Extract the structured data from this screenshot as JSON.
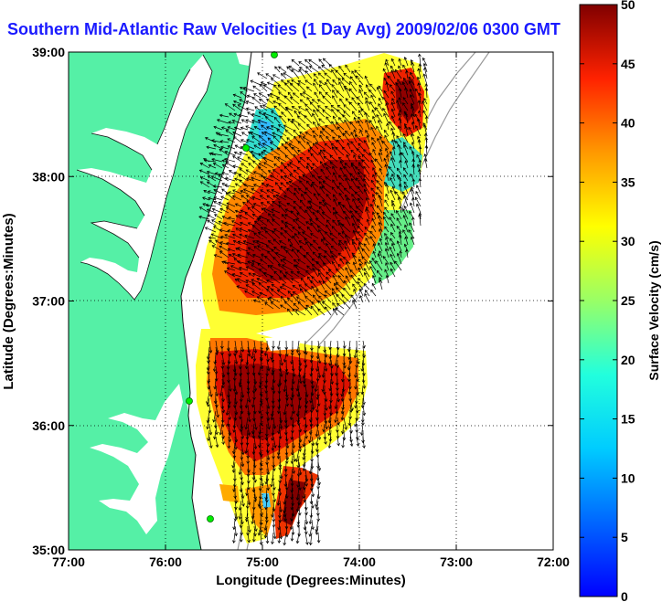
{
  "title": "Southern Mid-Atlantic Raw Velocities (1 Day Avg) 2009/02/06 0300 GMT",
  "x_axis": {
    "label": "Longitude (Degrees:Minutes)",
    "ticks": [
      "77:00",
      "76:00",
      "75:00",
      "74:00",
      "73:00",
      "72:00"
    ]
  },
  "y_axis": {
    "label": "Latitude (Degrees:Minutes)",
    "ticks": [
      "39:00",
      "38:00",
      "37:00",
      "36:00",
      "35:00"
    ]
  },
  "colorbar": {
    "label": "Surface Velocity (cm/s)",
    "ticks": [
      "0",
      "5",
      "10",
      "15",
      "20",
      "25",
      "30",
      "35",
      "40",
      "45",
      "50"
    ]
  },
  "colors": {
    "land": "#55f0a6",
    "title": "#1a1aff",
    "station": "#00ee00"
  }
}
